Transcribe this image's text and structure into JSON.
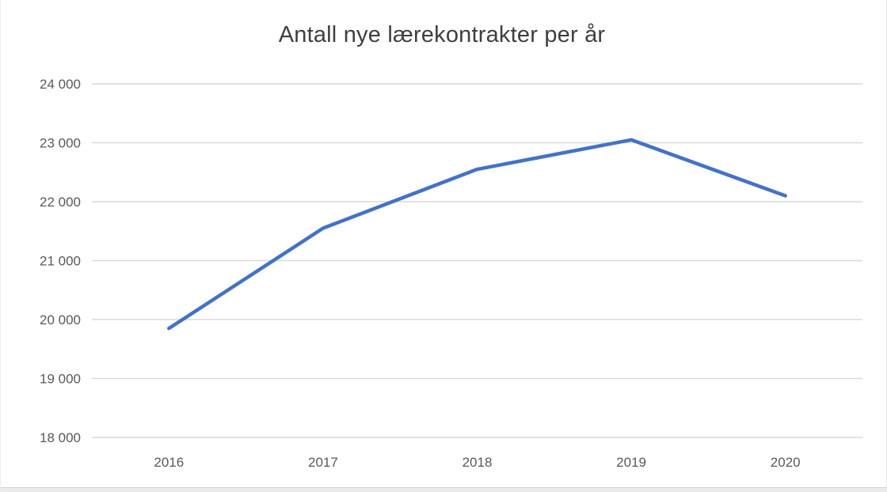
{
  "chart_data": {
    "type": "line",
    "title": "Antall nye lærekontrakter per år",
    "categories": [
      "2016",
      "2017",
      "2018",
      "2019",
      "2020"
    ],
    "values": [
      19850,
      21550,
      22550,
      23050,
      22100
    ],
    "xlabel": "",
    "ylabel": "",
    "ylim": [
      18000,
      24000
    ],
    "ytick_step": 1000,
    "yticks": [
      {
        "value": 18000,
        "label": "18 000"
      },
      {
        "value": 19000,
        "label": "19 000"
      },
      {
        "value": 20000,
        "label": "20 000"
      },
      {
        "value": 21000,
        "label": "21 000"
      },
      {
        "value": 22000,
        "label": "22 000"
      },
      {
        "value": 23000,
        "label": "23 000"
      },
      {
        "value": 24000,
        "label": "24 000"
      }
    ],
    "grid": true,
    "legend": false,
    "colors": {
      "line": "#4472C4",
      "grid": "#d9d9d9",
      "tick_text": "#595959",
      "title_text": "#3f3f3f"
    }
  }
}
